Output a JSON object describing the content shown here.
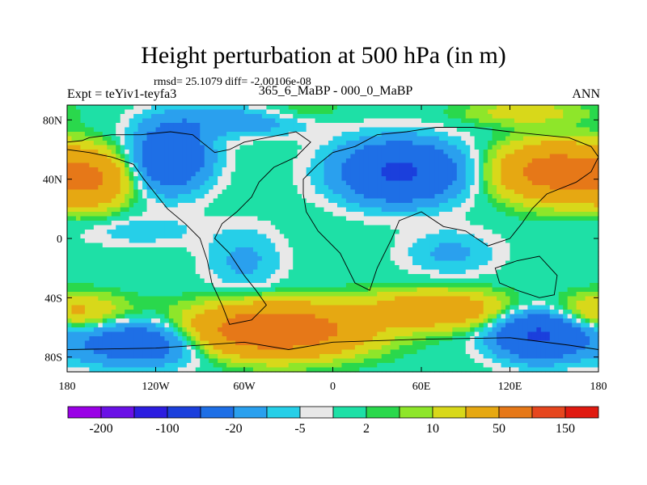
{
  "chart_data": {
    "type": "heatmap",
    "title": "Height perturbation at 500 hPa (in m)",
    "stats": "rmsd= 25.1079 diff= -2.00106e-08",
    "experiment": "Expt = teYiv1-teyfa3",
    "period": "365_6_MaBP - 000_0_MaBP",
    "season": "ANN",
    "x_ticks": [
      {
        "value": -180,
        "label": "180"
      },
      {
        "value": -120,
        "label": "120W"
      },
      {
        "value": -60,
        "label": "60W"
      },
      {
        "value": 0,
        "label": "0"
      },
      {
        "value": 60,
        "label": "60E"
      },
      {
        "value": 120,
        "label": "120E"
      },
      {
        "value": 180,
        "label": "180"
      }
    ],
    "y_ticks": [
      {
        "value": 80,
        "label": "80N"
      },
      {
        "value": 40,
        "label": "40N"
      },
      {
        "value": 0,
        "label": "0"
      },
      {
        "value": -40,
        "label": "40S"
      },
      {
        "value": -80,
        "label": "80S"
      }
    ],
    "xlim": [
      -180,
      180
    ],
    "ylim": [
      -90,
      90
    ],
    "colorbar": {
      "levels": [
        -200,
        -150,
        -100,
        -50,
        -20,
        -10,
        -5,
        -2,
        2,
        5,
        10,
        20,
        50,
        100,
        150,
        200
      ],
      "labels": [
        {
          "value": -200,
          "label": "-200"
        },
        {
          "value": -100,
          "label": "-100"
        },
        {
          "value": -20,
          "label": "-20"
        },
        {
          "value": -5,
          "label": "-5"
        },
        {
          "value": 2,
          "label": "2"
        },
        {
          "value": 10,
          "label": "10"
        },
        {
          "value": 50,
          "label": "50"
        },
        {
          "value": 150,
          "label": "150"
        }
      ],
      "colors": [
        "#9a00e6",
        "#6a10e6",
        "#2c1de0",
        "#1b3fdc",
        "#1e6fe6",
        "#2aa0ee",
        "#26cfe8",
        "#e8e8e8",
        "#1ee0a6",
        "#2ad84c",
        "#8ee62a",
        "#d8d81a",
        "#e6a812",
        "#e67818",
        "#e6461e",
        "#e01a10"
      ]
    },
    "features": [
      {
        "name": "high-north-atlantic",
        "lon": 150,
        "lat": 45,
        "rlon": 35,
        "rlat": 18,
        "value": 70
      },
      {
        "name": "high-north-pacific",
        "lon": -165,
        "lat": 40,
        "rlon": 25,
        "rlat": 18,
        "value": 50
      },
      {
        "name": "high-south-atlantic",
        "lon": -40,
        "lat": -62,
        "rlon": 55,
        "rlat": 16,
        "value": 90
      },
      {
        "name": "high-south-indian",
        "lon": 70,
        "lat": -48,
        "rlon": 45,
        "rlat": 12,
        "value": 40
      },
      {
        "name": "high-south-pacific",
        "lon": -175,
        "lat": -50,
        "rlon": 35,
        "rlat": 12,
        "value": 25
      },
      {
        "name": "high-arctic-siberia",
        "lon": 130,
        "lat": 85,
        "rlon": 40,
        "rlat": 8,
        "value": 15
      },
      {
        "name": "high-arctic-atlantic",
        "lon": -30,
        "lat": 85,
        "rlon": 35,
        "rlat": 8,
        "value": 10
      },
      {
        "name": "low-central-asia",
        "lon": 45,
        "lat": 45,
        "rlon": 40,
        "rlat": 20,
        "value": -55
      },
      {
        "name": "low-north-america",
        "lon": -110,
        "lat": 55,
        "rlon": 25,
        "rlat": 22,
        "value": -45
      },
      {
        "name": "low-arctic-north",
        "lon": -60,
        "lat": 80,
        "rlon": 45,
        "rlat": 10,
        "value": -20
      },
      {
        "name": "low-south-america",
        "lon": -60,
        "lat": -15,
        "rlon": 25,
        "rlat": 22,
        "value": -12
      },
      {
        "name": "low-south-indian",
        "lon": 80,
        "lat": -10,
        "rlon": 30,
        "rlat": 15,
        "value": -12
      },
      {
        "name": "low-south-pacific",
        "lon": 140,
        "lat": -65,
        "rlon": 30,
        "rlat": 16,
        "value": -55
      },
      {
        "name": "low-east-pacific",
        "lon": -130,
        "lat": -70,
        "rlon": 45,
        "rlat": 15,
        "value": -40
      },
      {
        "name": "low-tropical-pacific",
        "lon": -130,
        "lat": 5,
        "rlon": 40,
        "rlat": 10,
        "value": -8
      }
    ],
    "land_outline": [
      [
        -180,
        65
      ],
      [
        -170,
        66
      ],
      [
        -165,
        68
      ],
      [
        -150,
        70
      ],
      [
        -130,
        70
      ],
      [
        -110,
        72
      ],
      [
        -95,
        70
      ],
      [
        -85,
        62
      ],
      [
        -80,
        58
      ],
      [
        -70,
        60
      ],
      [
        -60,
        65
      ],
      [
        -45,
        68
      ],
      [
        -25,
        72
      ],
      [
        -15,
        65
      ],
      [
        -25,
        55
      ],
      [
        -40,
        48
      ],
      [
        -50,
        38
      ],
      [
        -55,
        28
      ],
      [
        -65,
        18
      ],
      [
        -75,
        10
      ],
      [
        -80,
        0
      ],
      [
        -70,
        -10
      ],
      [
        -60,
        -25
      ],
      [
        -52,
        -35
      ],
      [
        -45,
        -45
      ],
      [
        -55,
        -55
      ],
      [
        -70,
        -58
      ],
      [
        -75,
        -45
      ],
      [
        -82,
        -30
      ],
      [
        -85,
        -15
      ],
      [
        -90,
        0
      ],
      [
        -100,
        10
      ],
      [
        -112,
        20
      ],
      [
        -120,
        30
      ],
      [
        -128,
        40
      ],
      [
        -135,
        50
      ],
      [
        -150,
        55
      ],
      [
        -165,
        58
      ],
      [
        -180,
        60
      ]
    ],
    "land_outline_2": [
      [
        -20,
        40
      ],
      [
        -10,
        50
      ],
      [
        0,
        58
      ],
      [
        15,
        62
      ],
      [
        30,
        70
      ],
      [
        50,
        72
      ],
      [
        70,
        75
      ],
      [
        95,
        75
      ],
      [
        120,
        72
      ],
      [
        140,
        70
      ],
      [
        160,
        68
      ],
      [
        175,
        62
      ],
      [
        180,
        55
      ],
      [
        175,
        45
      ],
      [
        165,
        38
      ],
      [
        145,
        30
      ],
      [
        135,
        20
      ],
      [
        128,
        10
      ],
      [
        120,
        0
      ],
      [
        105,
        -5
      ],
      [
        90,
        5
      ],
      [
        75,
        8
      ],
      [
        60,
        18
      ],
      [
        45,
        12
      ],
      [
        40,
        0
      ],
      [
        30,
        -20
      ],
      [
        25,
        -35
      ],
      [
        15,
        -30
      ],
      [
        5,
        -10
      ],
      [
        -10,
        5
      ],
      [
        -18,
        18
      ],
      [
        -20,
        30
      ]
    ],
    "land_outline_3": [
      [
        110,
        -20
      ],
      [
        125,
        -15
      ],
      [
        140,
        -12
      ],
      [
        152,
        -25
      ],
      [
        150,
        -38
      ],
      [
        140,
        -40
      ],
      [
        125,
        -35
      ],
      [
        113,
        -30
      ]
    ],
    "land_outline_4": [
      [
        -180,
        -75
      ],
      [
        -120,
        -74
      ],
      [
        -60,
        -70
      ],
      [
        -30,
        -75
      ],
      [
        0,
        -70
      ],
      [
        60,
        -68
      ],
      [
        120,
        -67
      ],
      [
        160,
        -72
      ],
      [
        180,
        -75
      ]
    ]
  }
}
